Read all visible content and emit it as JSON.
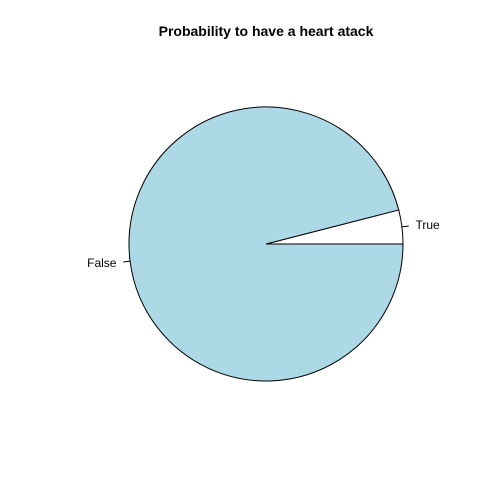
{
  "chart_data": {
    "type": "pie",
    "title": "Probability to have a heart atack",
    "slices": [
      {
        "label": "True",
        "value": 0.04,
        "color": "#ffffff"
      },
      {
        "label": "False",
        "value": 0.96,
        "color": "#add8e6"
      }
    ],
    "start_angle_deg": 0,
    "direction": "counterclockwise",
    "outline_color": "#000000"
  }
}
